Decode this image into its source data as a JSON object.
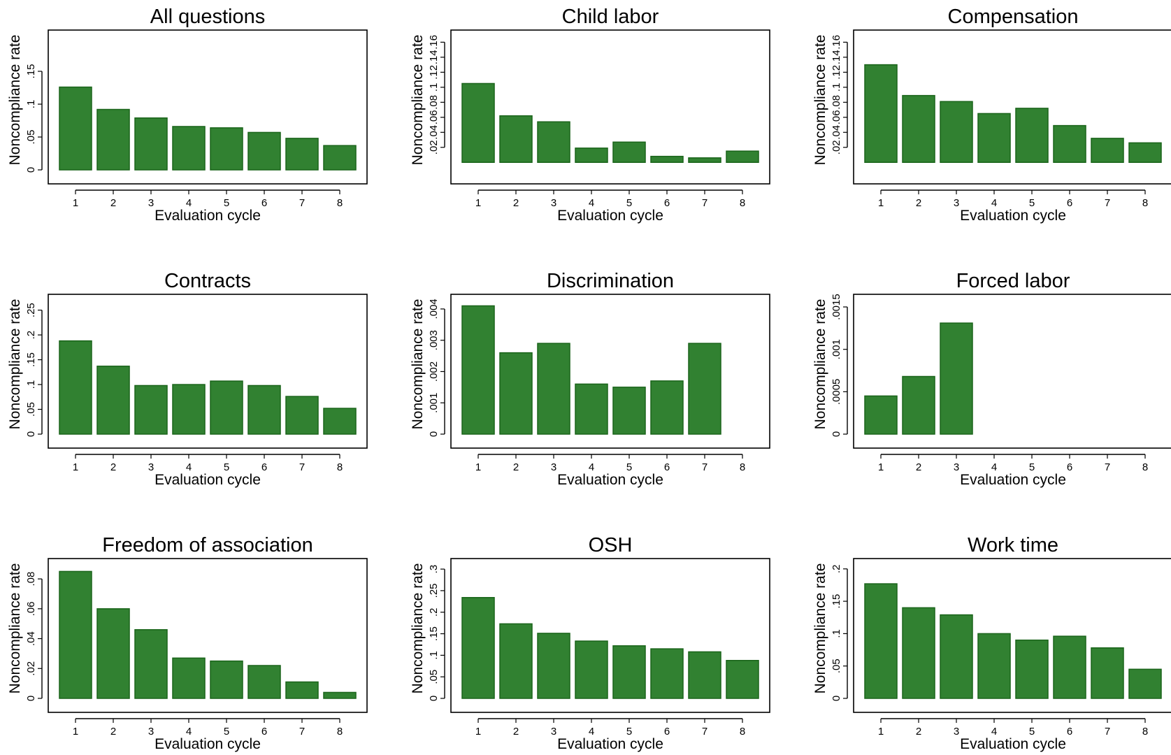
{
  "style": {
    "bar_fill": "#318131",
    "bar_stroke": "#1a641a",
    "frame_color": "#000000",
    "background": "#ffffff"
  },
  "chart_data": [
    {
      "type": "bar",
      "title": "All questions",
      "xlabel": "Evaluation cycle",
      "ylabel": "Noncompliance rate",
      "categories": [
        "1",
        "2",
        "3",
        "4",
        "5",
        "6",
        "7",
        "8"
      ],
      "values": [
        0.126,
        0.092,
        0.079,
        0.066,
        0.064,
        0.057,
        0.048,
        0.037
      ],
      "ylim": [
        0,
        0.2
      ],
      "yticks": [
        0,
        0.05,
        0.1,
        0.15
      ],
      "ytick_labels": [
        "0",
        ".05",
        ".1",
        ".15"
      ],
      "grid": false,
      "legend": "none"
    },
    {
      "type": "bar",
      "title": "Child labor",
      "xlabel": "Evaluation cycle",
      "ylabel": "Noncompliance rate",
      "categories": [
        "1",
        "2",
        "3",
        "4",
        "5",
        "6",
        "7",
        "8"
      ],
      "values": [
        0.105,
        0.062,
        0.054,
        0.019,
        0.027,
        0.008,
        0.006,
        0.015
      ],
      "ylim": [
        -0.01,
        0.165
      ],
      "yticks": [
        0.02,
        0.04,
        0.06,
        0.08,
        0.1,
        0.12,
        0.14,
        0.16
      ],
      "ytick_labels": [
        ".02",
        ".04",
        ".06",
        ".08",
        ".1",
        ".12",
        ".14",
        ".16"
      ],
      "grid": false,
      "legend": "none"
    },
    {
      "type": "bar",
      "title": "Compensation",
      "xlabel": "Evaluation cycle",
      "ylabel": "Noncompliance rate",
      "categories": [
        "1",
        "2",
        "3",
        "4",
        "5",
        "6",
        "7",
        "8"
      ],
      "values": [
        0.13,
        0.089,
        0.081,
        0.065,
        0.072,
        0.049,
        0.032,
        0.026
      ],
      "ylim": [
        -0.01,
        0.165
      ],
      "yticks": [
        0.02,
        0.04,
        0.06,
        0.08,
        0.1,
        0.12,
        0.14,
        0.16
      ],
      "ytick_labels": [
        ".02",
        ".04",
        ".06",
        ".08",
        ".1",
        ".12",
        ".14",
        ".16"
      ],
      "grid": false,
      "legend": "none"
    },
    {
      "type": "bar",
      "title": "Contracts",
      "xlabel": "Evaluation cycle",
      "ylabel": "Noncompliance rate",
      "categories": [
        "1",
        "2",
        "3",
        "4",
        "5",
        "6",
        "7",
        "8"
      ],
      "values": [
        0.188,
        0.137,
        0.098,
        0.1,
        0.107,
        0.098,
        0.076,
        0.052
      ],
      "ylim": [
        0,
        0.265
      ],
      "yticks": [
        0,
        0.05,
        0.1,
        0.15,
        0.2,
        0.25
      ],
      "ytick_labels": [
        "0",
        ".05",
        ".1",
        ".15",
        ".2",
        ".25"
      ],
      "grid": false,
      "legend": "none"
    },
    {
      "type": "bar",
      "title": "Discrimination",
      "xlabel": "Evaluation cycle",
      "ylabel": "Noncompliance rate",
      "categories": [
        "1",
        "2",
        "3",
        "4",
        "5",
        "6",
        "7",
        "8"
      ],
      "values": [
        0.0041,
        0.0026,
        0.0029,
        0.0016,
        0.0015,
        0.0017,
        0.0029,
        null
      ],
      "ylim": [
        0,
        0.0042
      ],
      "yticks": [
        0,
        0.001,
        0.002,
        0.003,
        0.004
      ],
      "ytick_labels": [
        "0",
        ".001",
        ".002",
        ".003",
        ".004"
      ],
      "grid": false,
      "legend": "none"
    },
    {
      "type": "bar",
      "title": "Forced labor",
      "xlabel": "Evaluation cycle",
      "ylabel": "Noncompliance rate",
      "categories": [
        "1",
        "2",
        "3",
        "4",
        "5",
        "6",
        "7",
        "8"
      ],
      "values": [
        0.00045,
        0.00068,
        0.00131,
        null,
        null,
        null,
        null,
        null
      ],
      "ylim": [
        0,
        0.00155
      ],
      "yticks": [
        0,
        0.0005,
        0.001,
        0.0015
      ],
      "ytick_labels": [
        "0",
        ".0005",
        ".001",
        ".0015"
      ],
      "grid": false,
      "legend": "none"
    },
    {
      "type": "bar",
      "title": "Freedom of association",
      "xlabel": "Evaluation cycle",
      "ylabel": "Noncompliance rate",
      "categories": [
        "1",
        "2",
        "3",
        "4",
        "5",
        "6",
        "7",
        "8"
      ],
      "values": [
        0.085,
        0.06,
        0.046,
        0.027,
        0.025,
        0.022,
        0.011,
        0.004
      ],
      "ylim": [
        0,
        0.088
      ],
      "yticks": [
        0,
        0.02,
        0.04,
        0.06,
        0.08
      ],
      "ytick_labels": [
        "0",
        ".02",
        ".04",
        ".06",
        ".08"
      ],
      "grid": false,
      "legend": "none"
    },
    {
      "type": "bar",
      "title": "OSH",
      "xlabel": "Evaluation cycle",
      "ylabel": "Noncompliance rate",
      "categories": [
        "1",
        "2",
        "3",
        "4",
        "5",
        "6",
        "7",
        "8"
      ],
      "values": [
        0.234,
        0.173,
        0.151,
        0.133,
        0.122,
        0.115,
        0.108,
        0.088
      ],
      "ylim": [
        0,
        0.305
      ],
      "yticks": [
        0,
        0.05,
        0.1,
        0.15,
        0.2,
        0.25,
        0.3
      ],
      "ytick_labels": [
        "0",
        ".05",
        ".1",
        ".15",
        ".2",
        ".25",
        ".3"
      ],
      "grid": false,
      "legend": "none"
    },
    {
      "type": "bar",
      "title": "Work time",
      "xlabel": "Evaluation cycle",
      "ylabel": "Noncompliance rate",
      "categories": [
        "1",
        "2",
        "3",
        "4",
        "5",
        "6",
        "7",
        "8"
      ],
      "values": [
        0.177,
        0.14,
        0.129,
        0.1,
        0.09,
        0.096,
        0.078,
        0.045
      ],
      "ylim": [
        0,
        0.203
      ],
      "yticks": [
        0,
        0.05,
        0.1,
        0.15,
        0.2
      ],
      "ytick_labels": [
        "0",
        ".05",
        ".1",
        ".15",
        ".2"
      ],
      "grid": false,
      "legend": "none"
    }
  ]
}
